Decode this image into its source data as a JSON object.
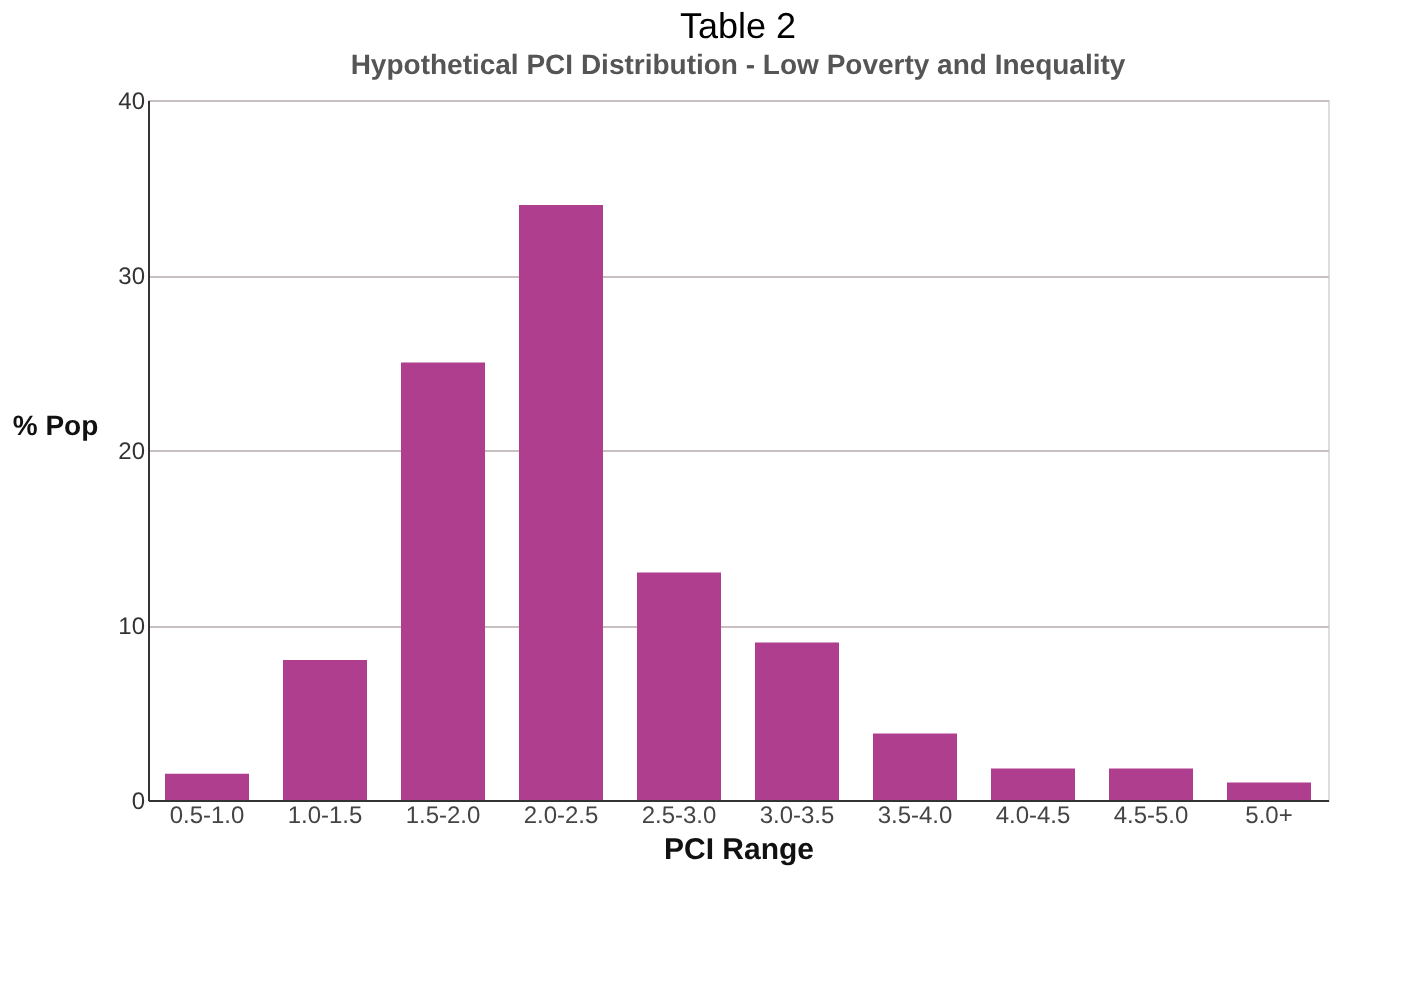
{
  "chart_data": {
    "type": "bar",
    "title": "Table 2",
    "subtitle": "Hypothetical PCI Distribution - Low Poverty and Inequality",
    "xlabel": "PCI Range",
    "ylabel": "% Pop",
    "categories": [
      "0.5-1.0",
      "1.0-1.5",
      "1.5-2.0",
      "2.0-2.5",
      "2.5-3.0",
      "3.0-3.5",
      "3.5-4.0",
      "4.0-4.5",
      "4.5-5.0",
      "5.0+"
    ],
    "values": [
      1.5,
      8,
      25,
      34,
      13,
      9,
      3.8,
      1.8,
      1.8,
      1.0
    ],
    "color": "#b03e8f",
    "ylim": [
      0,
      40
    ],
    "yticks": [
      0,
      10,
      20,
      30,
      40
    ],
    "grid": "y"
  }
}
